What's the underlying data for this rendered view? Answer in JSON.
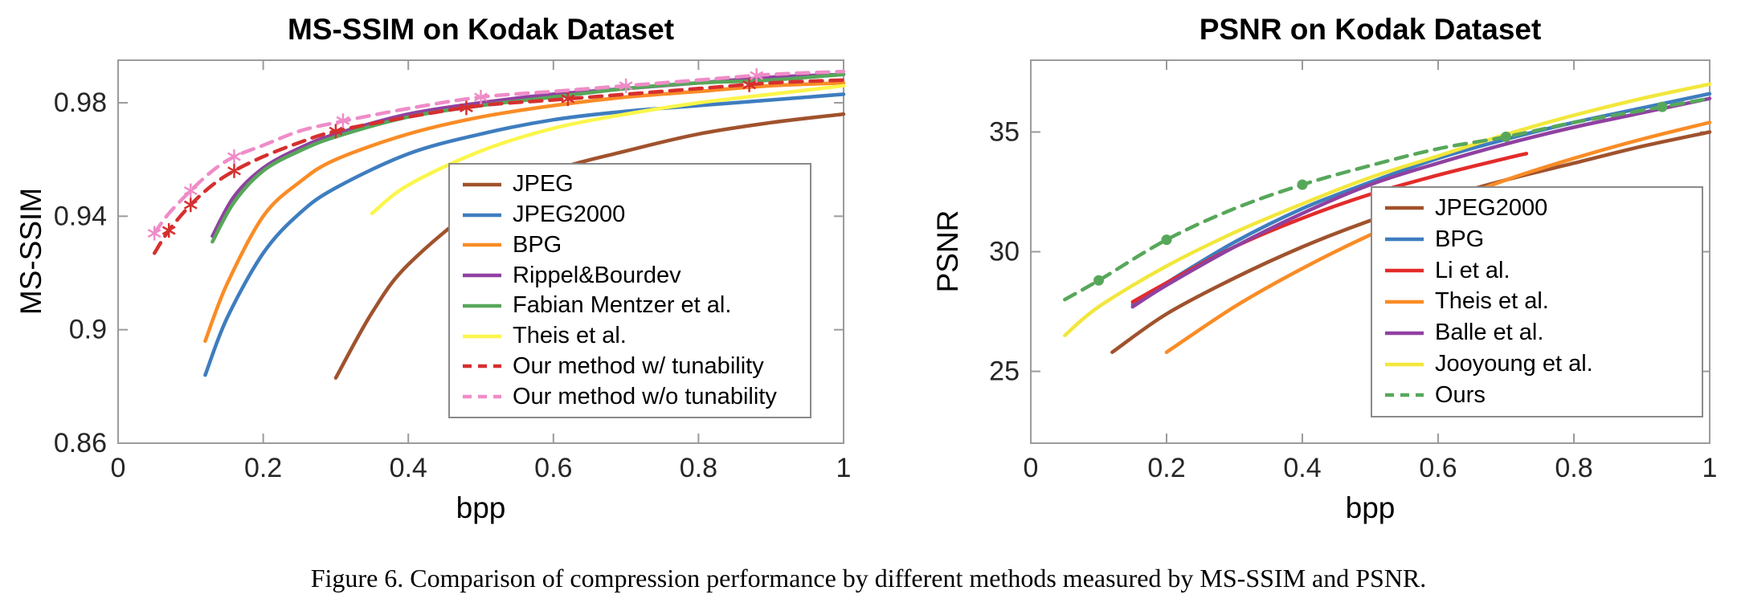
{
  "figure": {
    "caption": "Figure 6. Comparison of compression performance by different methods measured by MS-SSIM and PSNR."
  },
  "style": {
    "axis_box_color": "#9b9b9b",
    "tick_label_color": "#262626",
    "background": "#ffffff"
  },
  "chart_data": [
    {
      "type": "line",
      "title": "MS-SSIM on Kodak Dataset",
      "xlabel": "bpp",
      "ylabel": "MS-SSIM",
      "xlim": [
        0,
        1
      ],
      "ylim": [
        0.86,
        0.995
      ],
      "xticks": [
        0,
        0.2,
        0.4,
        0.6,
        0.8,
        1
      ],
      "xtick_labels": [
        "0",
        "0.2",
        "0.4",
        "0.6",
        "0.8",
        "1"
      ],
      "yticks": [
        0.86,
        0.9,
        0.94,
        0.98
      ],
      "ytick_labels": [
        "0.86",
        "0.9",
        "0.94",
        "0.98"
      ],
      "grid": false,
      "legend_position": "inside-middle-right",
      "series": [
        {
          "name": "JPEG",
          "color": "#a0522d",
          "style": "solid",
          "x": [
            0.3,
            0.35,
            0.4,
            0.5,
            0.6,
            0.7,
            0.8,
            0.9,
            1.0
          ],
          "y": [
            0.883,
            0.906,
            0.923,
            0.944,
            0.956,
            0.963,
            0.969,
            0.973,
            0.976
          ]
        },
        {
          "name": "JPEG2000",
          "color": "#3e7dbf",
          "style": "solid",
          "x": [
            0.12,
            0.15,
            0.2,
            0.25,
            0.3,
            0.4,
            0.5,
            0.6,
            0.7,
            0.8,
            0.9,
            1.0
          ],
          "y": [
            0.884,
            0.904,
            0.927,
            0.941,
            0.95,
            0.962,
            0.969,
            0.974,
            0.977,
            0.979,
            0.981,
            0.983
          ]
        },
        {
          "name": "BPG",
          "color": "#f98c26",
          "style": "solid",
          "x": [
            0.12,
            0.15,
            0.2,
            0.25,
            0.3,
            0.4,
            0.5,
            0.6,
            0.7,
            0.8,
            0.9,
            1.0
          ],
          "y": [
            0.896,
            0.916,
            0.94,
            0.952,
            0.96,
            0.969,
            0.975,
            0.979,
            0.982,
            0.984,
            0.986,
            0.987
          ]
        },
        {
          "name": "Rippel&Bourdev",
          "color": "#9041a0",
          "style": "solid",
          "x": [
            0.13,
            0.16,
            0.2,
            0.25,
            0.3,
            0.4,
            0.5,
            0.6,
            0.7,
            0.8,
            0.9,
            1.0
          ],
          "y": [
            0.933,
            0.947,
            0.957,
            0.964,
            0.969,
            0.976,
            0.98,
            0.983,
            0.985,
            0.987,
            0.989,
            0.99
          ]
        },
        {
          "name": "Fabian Mentzer et al.",
          "color": "#57a75a",
          "style": "solid",
          "x": [
            0.13,
            0.16,
            0.2,
            0.25,
            0.3,
            0.4,
            0.5,
            0.6,
            0.7,
            0.8,
            0.9,
            1.0
          ],
          "y": [
            0.931,
            0.945,
            0.956,
            0.963,
            0.968,
            0.975,
            0.979,
            0.982,
            0.985,
            0.987,
            0.988,
            0.99
          ]
        },
        {
          "name": "Theis et al.",
          "color": "#fbf64b",
          "style": "solid",
          "x": [
            0.35,
            0.4,
            0.5,
            0.6,
            0.7,
            0.8,
            0.9,
            1.0
          ],
          "y": [
            0.941,
            0.951,
            0.963,
            0.971,
            0.976,
            0.98,
            0.983,
            0.986
          ]
        },
        {
          "name": "Our method w/ tunability",
          "color": "#d62f2f",
          "style": "dashed",
          "marker": "asterisk",
          "x": [
            0.05,
            0.07,
            0.1,
            0.13,
            0.16,
            0.2,
            0.25,
            0.3,
            0.4,
            0.5,
            0.6,
            0.7,
            0.8,
            0.9,
            1.0
          ],
          "y": [
            0.927,
            0.935,
            0.944,
            0.951,
            0.956,
            0.961,
            0.966,
            0.97,
            0.975,
            0.979,
            0.981,
            0.983,
            0.985,
            0.987,
            0.988
          ],
          "marker_x": [
            0.07,
            0.1,
            0.16,
            0.3,
            0.48,
            0.62,
            0.87
          ],
          "marker_y": [
            0.935,
            0.944,
            0.956,
            0.97,
            0.9782,
            0.9814,
            0.9863
          ]
        },
        {
          "name": "Our method w/o tunability",
          "color": "#ef8cc8",
          "style": "dashed",
          "marker": "asterisk",
          "x": [
            0.05,
            0.07,
            0.1,
            0.13,
            0.16,
            0.2,
            0.25,
            0.3,
            0.4,
            0.5,
            0.6,
            0.7,
            0.8,
            0.9,
            1.0
          ],
          "y": [
            0.934,
            0.941,
            0.949,
            0.956,
            0.961,
            0.965,
            0.97,
            0.973,
            0.978,
            0.982,
            0.984,
            0.986,
            0.988,
            0.99,
            0.991
          ],
          "marker_x": [
            0.05,
            0.1,
            0.16,
            0.31,
            0.5,
            0.7,
            0.88
          ],
          "marker_y": [
            0.934,
            0.949,
            0.961,
            0.9737,
            0.982,
            0.986,
            0.9896
          ]
        }
      ]
    },
    {
      "type": "line",
      "title": "PSNR on Kodak Dataset",
      "xlabel": "bpp",
      "ylabel": "PSNR",
      "xlim": [
        0,
        1
      ],
      "ylim": [
        22,
        38
      ],
      "xticks": [
        0,
        0.2,
        0.4,
        0.6,
        0.8,
        1
      ],
      "xtick_labels": [
        "0",
        "0.2",
        "0.4",
        "0.6",
        "0.8",
        "1"
      ],
      "yticks": [
        25,
        30,
        35
      ],
      "ytick_labels": [
        "25",
        "30",
        "35"
      ],
      "grid": false,
      "legend_position": "inside-bottom-right",
      "series": [
        {
          "name": "JPEG2000",
          "color": "#a0522d",
          "style": "solid",
          "x": [
            0.12,
            0.2,
            0.3,
            0.4,
            0.5,
            0.6,
            0.7,
            0.8,
            0.9,
            1.0
          ],
          "y": [
            25.8,
            27.4,
            28.9,
            30.2,
            31.3,
            32.2,
            33.0,
            33.7,
            34.4,
            35.0
          ]
        },
        {
          "name": "BPG",
          "color": "#3e7dbf",
          "style": "solid",
          "x": [
            0.15,
            0.2,
            0.3,
            0.4,
            0.5,
            0.6,
            0.7,
            0.8,
            0.9,
            1.0
          ],
          "y": [
            27.8,
            28.7,
            30.4,
            31.8,
            32.9,
            33.9,
            34.7,
            35.4,
            36.0,
            36.6
          ]
        },
        {
          "name": "Li et al.",
          "color": "#e32b2b",
          "style": "solid",
          "x": [
            0.15,
            0.2,
            0.3,
            0.4,
            0.5,
            0.6,
            0.7,
            0.73
          ],
          "y": [
            27.9,
            28.7,
            30.2,
            31.4,
            32.4,
            33.2,
            33.9,
            34.1
          ]
        },
        {
          "name": "Theis et al.",
          "color": "#f98c26",
          "style": "solid",
          "x": [
            0.2,
            0.3,
            0.4,
            0.5,
            0.6,
            0.7,
            0.8,
            0.9,
            1.0
          ],
          "y": [
            25.8,
            27.7,
            29.3,
            30.7,
            31.9,
            33.0,
            33.9,
            34.7,
            35.4
          ]
        },
        {
          "name": "Balle et al.",
          "color": "#9041a0",
          "style": "solid",
          "x": [
            0.15,
            0.2,
            0.3,
            0.4,
            0.5,
            0.6,
            0.7,
            0.8,
            0.9,
            1.0
          ],
          "y": [
            27.7,
            28.6,
            30.2,
            31.6,
            32.8,
            33.7,
            34.5,
            35.2,
            35.8,
            36.4
          ]
        },
        {
          "name": "Jooyoung et al.",
          "color": "#f2e73c",
          "style": "solid",
          "x": [
            0.05,
            0.1,
            0.2,
            0.3,
            0.4,
            0.5,
            0.6,
            0.7,
            0.8,
            0.9,
            1.0
          ],
          "y": [
            26.5,
            27.7,
            29.4,
            30.8,
            32.0,
            33.1,
            34.0,
            34.9,
            35.7,
            36.4,
            37.0
          ]
        },
        {
          "name": "Ours",
          "color": "#57a75a",
          "style": "dashed",
          "marker": "circle",
          "x": [
            0.05,
            0.1,
            0.2,
            0.3,
            0.4,
            0.5,
            0.6,
            0.7,
            0.8,
            0.9,
            1.0
          ],
          "y": [
            28.0,
            28.8,
            30.5,
            31.8,
            32.8,
            33.6,
            34.3,
            34.8,
            35.4,
            35.9,
            36.4
          ],
          "marker_x": [
            0.1,
            0.2,
            0.4,
            0.7,
            0.93
          ],
          "marker_y": [
            28.8,
            30.5,
            32.8,
            34.8,
            36.05
          ]
        }
      ]
    }
  ]
}
